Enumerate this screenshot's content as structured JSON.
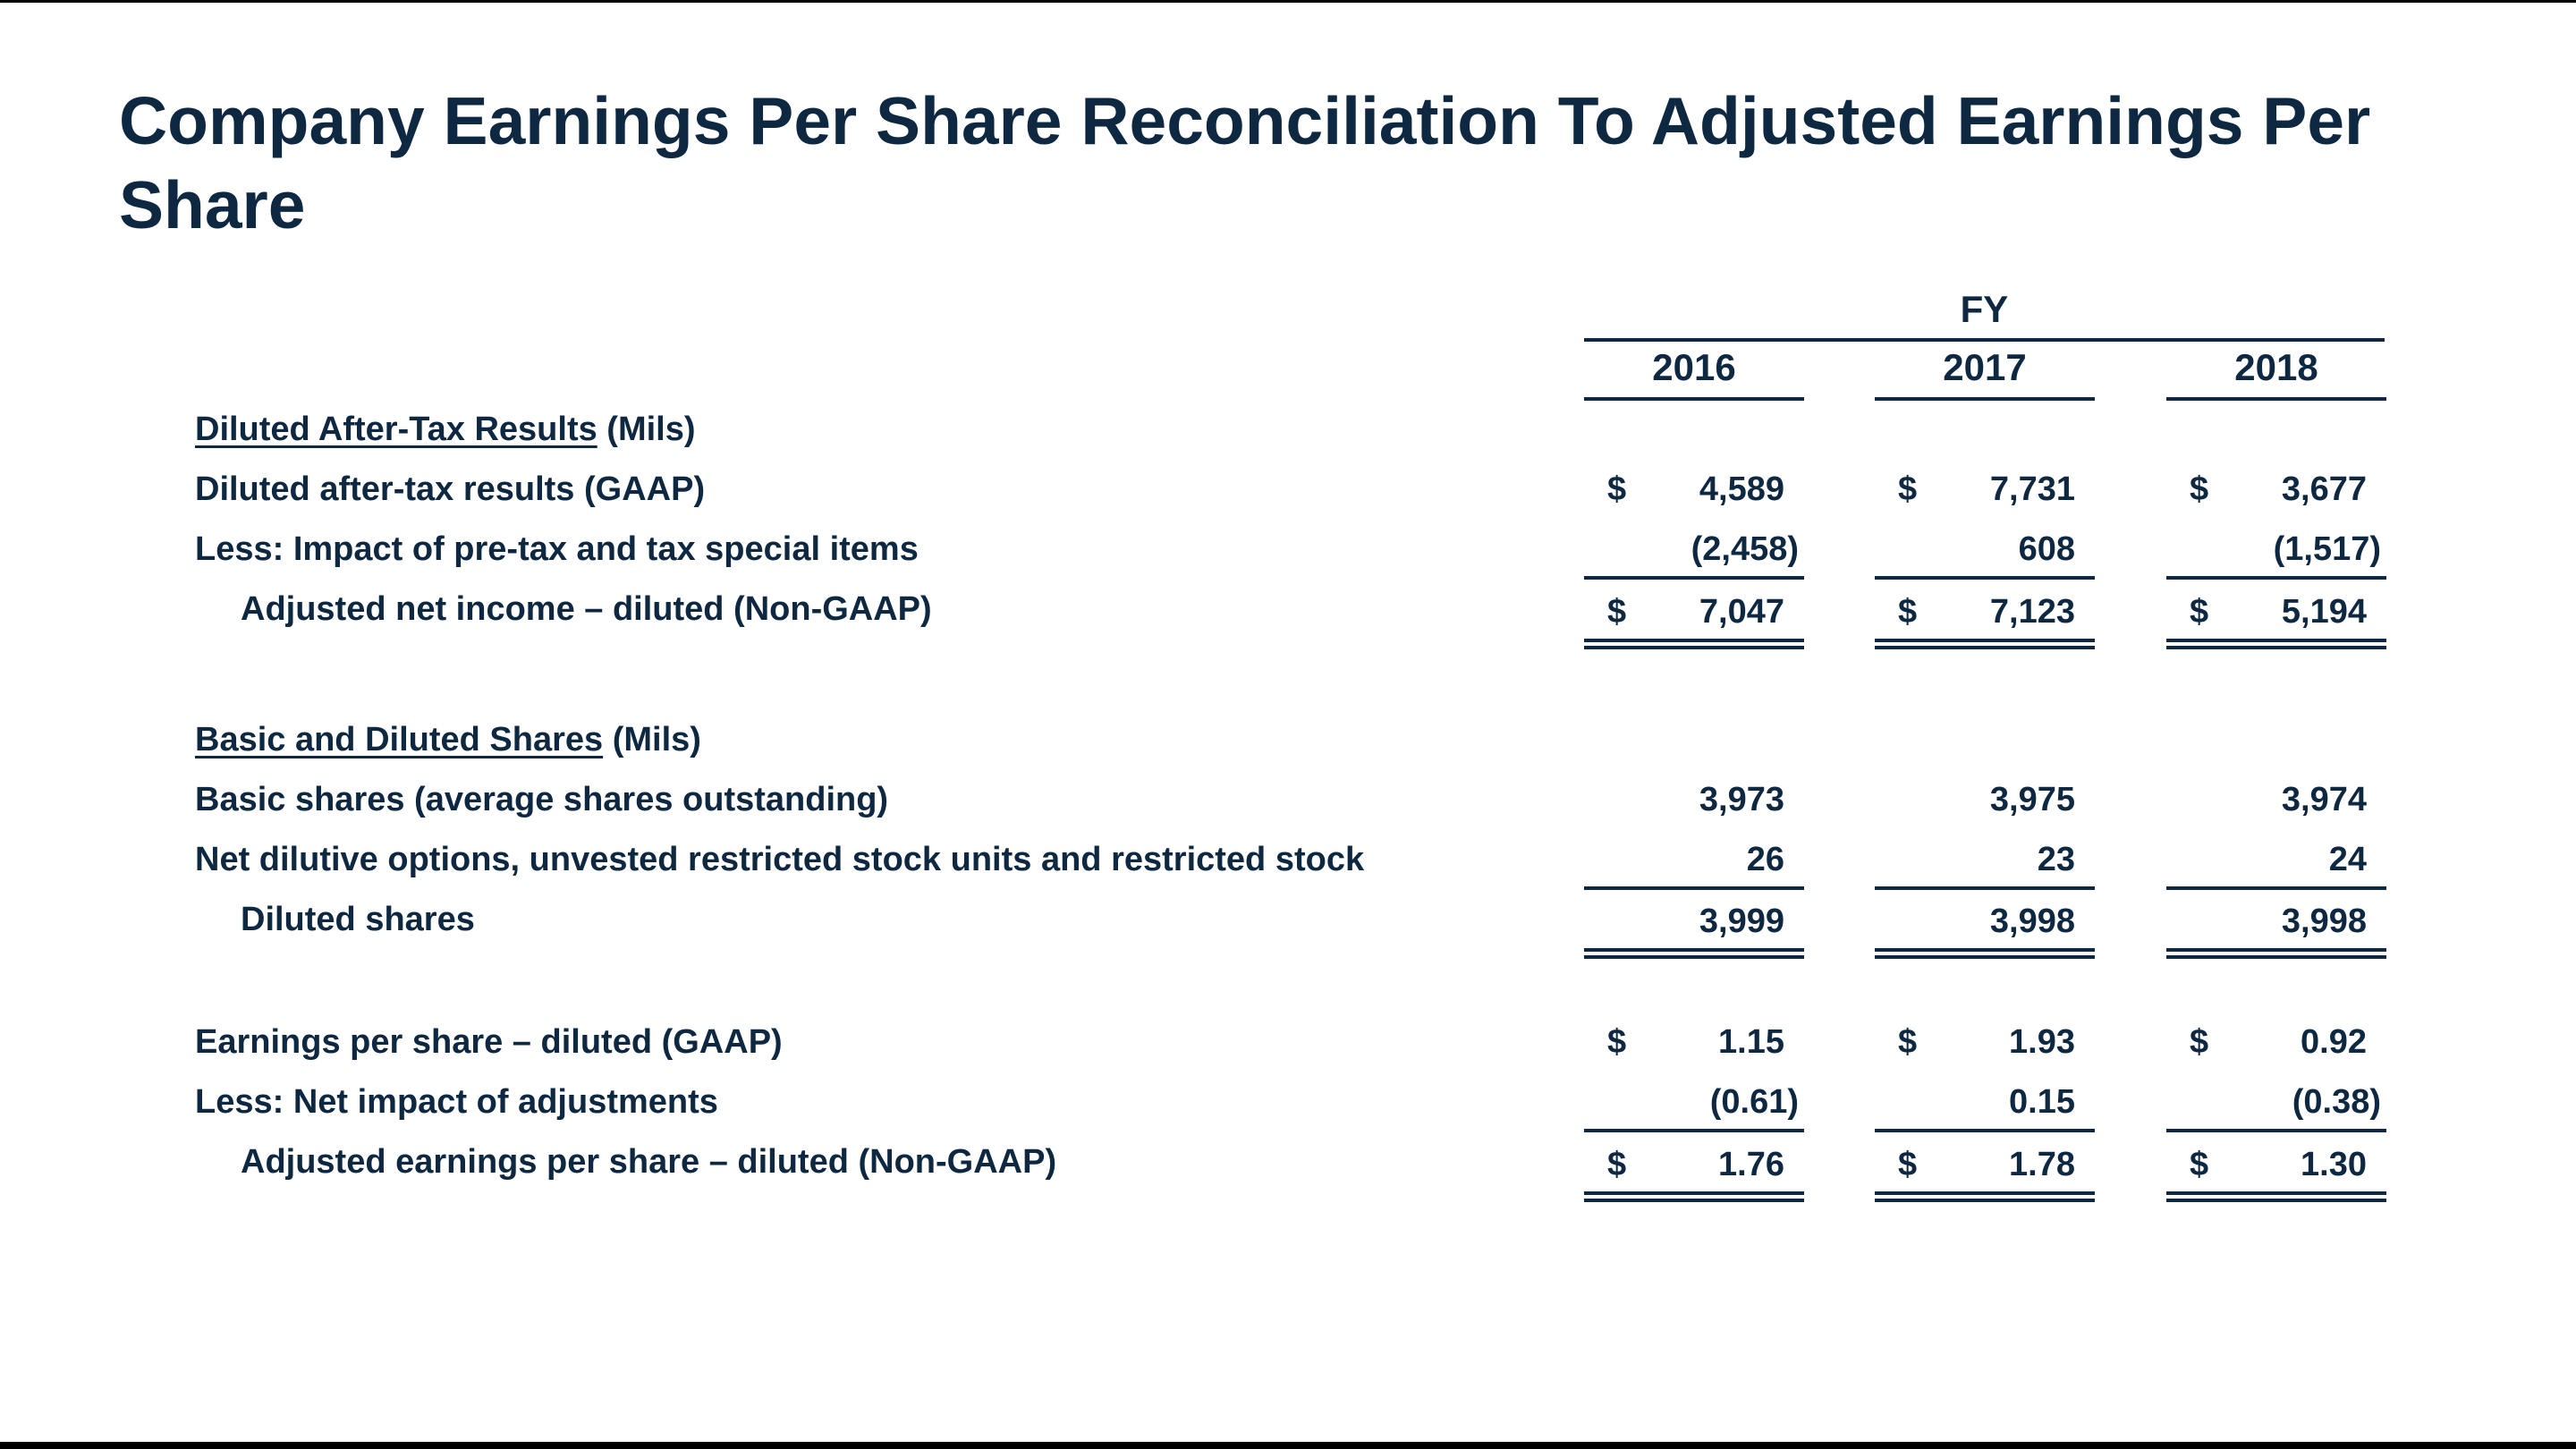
{
  "title": "Company Earnings Per Share Reconciliation To Adjusted Earnings Per Share",
  "header": {
    "group": "FY",
    "years": [
      "2016",
      "2017",
      "2018"
    ]
  },
  "sections": {
    "after_tax": {
      "heading": "Diluted After-Tax Results",
      "heading_suffix": " (Mils)",
      "rows": [
        {
          "label": "Diluted after-tax results (GAAP)",
          "currency": "$",
          "values": [
            "4,589",
            "7,731",
            "3,677"
          ]
        },
        {
          "label": "Less:  Impact of pre-tax and tax special items",
          "currency": "",
          "values": [
            "(2,458)",
            "608",
            "(1,517)"
          ]
        },
        {
          "label": "Adjusted net income – diluted (Non-GAAP)",
          "currency": "$",
          "values": [
            "7,047",
            "7,123",
            "5,194"
          ]
        }
      ]
    },
    "shares": {
      "heading": "Basic and Diluted Shares",
      "heading_suffix": " (Mils)",
      "rows": [
        {
          "label": "Basic shares (average shares outstanding)",
          "currency": "",
          "values": [
            "3,973",
            "3,975",
            "3,974"
          ]
        },
        {
          "label": "Net dilutive options, unvested restricted stock units and restricted stock",
          "currency": "",
          "values": [
            "26",
            "23",
            "24"
          ]
        },
        {
          "label": "Diluted shares",
          "currency": "",
          "values": [
            "3,999",
            "3,998",
            "3,998"
          ]
        }
      ]
    },
    "eps": {
      "rows": [
        {
          "label": "Earnings per share – diluted (GAAP)",
          "currency": "$",
          "values": [
            "1.15",
            "1.93",
            "0.92"
          ]
        },
        {
          "label": "Less:  Net impact of adjustments",
          "currency": "",
          "values": [
            "(0.61)",
            "0.15",
            "(0.38)"
          ]
        },
        {
          "label": "Adjusted earnings per share – diluted (Non-GAAP)",
          "currency": "$",
          "values": [
            "1.76",
            "1.78",
            "1.30"
          ]
        }
      ]
    }
  }
}
